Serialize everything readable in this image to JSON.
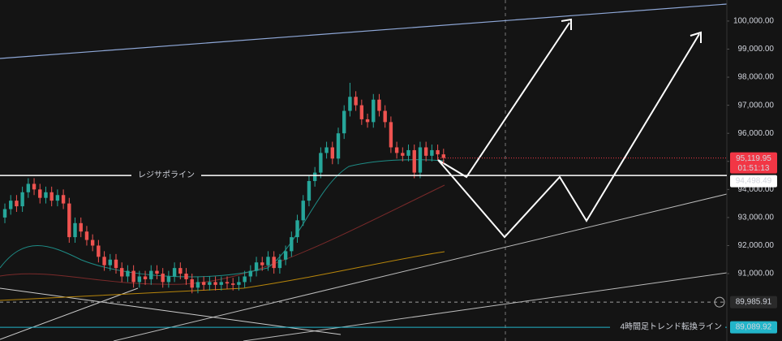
{
  "chart_data": {
    "type": "candlestick",
    "up_color": "#26a69a",
    "down_color": "#ef5350",
    "ylim": [
      88600,
      100750
    ],
    "yticks": [
      {
        "value": 91000,
        "label": "91,000.00"
      },
      {
        "value": 92000,
        "label": "92,000.00"
      },
      {
        "value": 93000,
        "label": "93,000.00"
      },
      {
        "value": 94000,
        "label": "94,000.00"
      },
      {
        "value": 95000,
        "label": "95,000.00"
      },
      {
        "value": 96000,
        "label": "96,000.00"
      },
      {
        "value": 97000,
        "label": "97,000.00"
      },
      {
        "value": 98000,
        "label": "98,000.00"
      },
      {
        "value": 99000,
        "label": "99,000.00"
      },
      {
        "value": 100000,
        "label": "100,000.00"
      }
    ],
    "open": [
      93000,
      93300,
      93600,
      93400,
      93900,
      94200,
      94000,
      93700,
      93900,
      93600,
      93800,
      93500,
      92300,
      92800,
      92500,
      92200,
      92000,
      91600,
      91300,
      91500,
      91200,
      90900,
      91100,
      90700,
      90900,
      90800,
      91100,
      91000,
      90700,
      90900,
      91200,
      91000,
      90800,
      90500,
      90700,
      90600,
      90700,
      90600,
      90700,
      90650,
      90600,
      90700,
      90900,
      91100,
      91400,
      91300,
      91600,
      91200,
      91500,
      91800,
      92300,
      92900,
      93600,
      94300,
      94600,
      95300,
      95500,
      95100,
      96000,
      96800,
      97300,
      97000,
      96500,
      96400,
      97200,
      96800,
      96400,
      95500,
      95300,
      95200,
      95400,
      94600,
      95500,
      95200,
      95400,
      95250
    ],
    "high": [
      93500,
      93800,
      93800,
      94100,
      94400,
      94400,
      94200,
      94100,
      94100,
      94000,
      94000,
      93700,
      93000,
      93000,
      92700,
      92400,
      92200,
      91800,
      91700,
      91700,
      91400,
      91300,
      91300,
      91100,
      91100,
      91300,
      91300,
      91200,
      91100,
      91400,
      91400,
      91200,
      91000,
      90900,
      90900,
      90900,
      90900,
      90900,
      90900,
      90850,
      90900,
      91100,
      91300,
      91600,
      91600,
      91800,
      91800,
      91700,
      92000,
      92500,
      93100,
      93800,
      94500,
      94800,
      95500,
      95700,
      95700,
      96200,
      97000,
      97800,
      97500,
      97200,
      96700,
      97400,
      97400,
      97000,
      96600,
      95700,
      95500,
      95600,
      95600,
      95700,
      95700,
      95600,
      95600,
      95450
    ],
    "low": [
      92800,
      93100,
      93200,
      93200,
      93700,
      93800,
      93500,
      93500,
      93400,
      93400,
      93300,
      92100,
      92100,
      92300,
      92000,
      91800,
      91400,
      91100,
      91100,
      91000,
      90700,
      90700,
      90500,
      90500,
      90600,
      90600,
      90800,
      90500,
      90500,
      90700,
      90800,
      90600,
      90300,
      90300,
      90400,
      90400,
      90400,
      90400,
      90450,
      90400,
      90400,
      90500,
      90700,
      90900,
      91100,
      91100,
      91000,
      91000,
      91300,
      91600,
      92100,
      92700,
      93400,
      94100,
      94400,
      95100,
      94900,
      94900,
      95800,
      96600,
      96800,
      96300,
      96200,
      96200,
      96600,
      96200,
      95300,
      95100,
      95000,
      95000,
      94400,
      94400,
      95000,
      95000,
      95050,
      94920
    ],
    "close": [
      93300,
      93600,
      93400,
      93900,
      94200,
      94000,
      93700,
      93900,
      93600,
      93800,
      93500,
      92300,
      92800,
      92500,
      92200,
      92000,
      91600,
      91300,
      91500,
      91200,
      90900,
      91100,
      90700,
      90900,
      90800,
      91100,
      91000,
      90700,
      90900,
      91200,
      91000,
      90800,
      90500,
      90700,
      90600,
      90700,
      90600,
      90700,
      90650,
      90600,
      90700,
      90900,
      91100,
      91400,
      91300,
      91600,
      91200,
      91500,
      91800,
      92300,
      92900,
      93600,
      94300,
      94600,
      95300,
      95500,
      95100,
      96000,
      96800,
      97300,
      97000,
      96500,
      96400,
      97200,
      96800,
      96400,
      95500,
      95300,
      95200,
      95400,
      94600,
      95500,
      95200,
      95400,
      95250,
      95120
    ],
    "price_lines": [
      {
        "value": 95119.95,
        "label": "95,119.95",
        "countdown": "01:51:13",
        "color": "#f23645"
      },
      {
        "value": 94498.49,
        "label": "94,498.49",
        "name": "レジサポライン",
        "color": "#ffffff"
      },
      {
        "value": 89985.91,
        "label": "89,985.91",
        "color": "#9e9e9e"
      },
      {
        "value": 89089.92,
        "label": "89,089.92",
        "name": "4時間足トレンド転換ライン",
        "color": "#22b5c9"
      }
    ]
  }
}
